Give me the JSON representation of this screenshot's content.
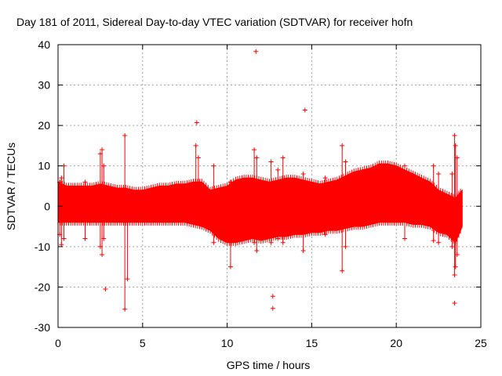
{
  "chart_data": {
    "type": "scatter",
    "title": "Day 181 of 2011, Sidereal Day-to-day VTEC variation (SDTVAR) for receiver hofn",
    "xlabel": "GPS time / hours",
    "ylabel": "SDTVAR / TECUs",
    "xlim": [
      0,
      25
    ],
    "ylim": [
      -30,
      40
    ],
    "xticks": [
      0,
      5,
      10,
      15,
      20,
      25
    ],
    "yticks": [
      -30,
      -20,
      -10,
      0,
      10,
      20,
      30,
      40
    ],
    "grid": true,
    "series_color": "#ff0000",
    "band": {
      "x": [
        0,
        0.5,
        1,
        1.5,
        2,
        2.5,
        3,
        3.5,
        4,
        4.5,
        5,
        5.5,
        6,
        6.5,
        7,
        7.5,
        8,
        8.5,
        9,
        9.5,
        10,
        10.5,
        11,
        11.5,
        12,
        12.5,
        13,
        13.5,
        14,
        14.5,
        15,
        15.5,
        16,
        16.5,
        17,
        17.5,
        18,
        18.5,
        19,
        19.5,
        20,
        20.5,
        21,
        21.5,
        22,
        22.5,
        23,
        23.5,
        23.9
      ],
      "upper": [
        6,
        5,
        5,
        5,
        5,
        5.5,
        5,
        4.5,
        4.5,
        4,
        4,
        4.5,
        5,
        5,
        5.5,
        5.5,
        6,
        6,
        4,
        4.5,
        5,
        6.5,
        7,
        7,
        6.5,
        6,
        6.5,
        7,
        7,
        6.5,
        6,
        5.5,
        6,
        6.5,
        7.5,
        8.5,
        9,
        9.5,
        10.5,
        10.5,
        10,
        9,
        8,
        7,
        6,
        4,
        3,
        2,
        4
      ],
      "lower": [
        -4,
        -4,
        -4,
        -4,
        -4,
        -4,
        -4,
        -4,
        -4,
        -4,
        -4,
        -4,
        -4,
        -4,
        -4,
        -4,
        -4.5,
        -5,
        -6,
        -8,
        -9,
        -9,
        -8.5,
        -8,
        -8.5,
        -8,
        -7.5,
        -7.5,
        -7,
        -7,
        -6.5,
        -6.5,
        -6,
        -6,
        -5.5,
        -5,
        -5,
        -4.5,
        -4,
        -4,
        -4,
        -4,
        -4.5,
        -4.5,
        -5,
        -6.5,
        -7,
        -9,
        -5
      ]
    },
    "spikes": [
      {
        "x": 0.1,
        "y0": -7,
        "y1": 6
      },
      {
        "x": 0.2,
        "y0": -9.5,
        "y1": 7
      },
      {
        "x": 0.35,
        "y0": -8,
        "y1": 10
      },
      {
        "x": 1.6,
        "y0": -8,
        "y1": 6
      },
      {
        "x": 2.5,
        "y0": -10,
        "y1": 13
      },
      {
        "x": 2.6,
        "y0": -12,
        "y1": 14
      },
      {
        "x": 2.7,
        "y0": -8,
        "y1": 10
      },
      {
        "x": 3.95,
        "y0": -25.5,
        "y1": 17.5
      },
      {
        "x": 4.1,
        "y0": -18,
        "y1": 0
      },
      {
        "x": 8.15,
        "y0": -4,
        "y1": 15
      },
      {
        "x": 8.3,
        "y0": -4,
        "y1": 12
      },
      {
        "x": 9.2,
        "y0": -9,
        "y1": 10
      },
      {
        "x": 10.2,
        "y0": -15,
        "y1": 6
      },
      {
        "x": 11.6,
        "y0": -9,
        "y1": 14
      },
      {
        "x": 11.75,
        "y0": -11,
        "y1": 12
      },
      {
        "x": 12.6,
        "y0": -9,
        "y1": 11
      },
      {
        "x": 13.0,
        "y0": -8,
        "y1": 9
      },
      {
        "x": 13.3,
        "y0": -9,
        "y1": 12
      },
      {
        "x": 14.5,
        "y0": -11,
        "y1": 8
      },
      {
        "x": 15.8,
        "y0": -7,
        "y1": 7
      },
      {
        "x": 16.8,
        "y0": -16,
        "y1": 15
      },
      {
        "x": 17.0,
        "y0": -10,
        "y1": 11
      },
      {
        "x": 20.5,
        "y0": -8,
        "y1": 10
      },
      {
        "x": 22.2,
        "y0": -8.5,
        "y1": 10
      },
      {
        "x": 22.5,
        "y0": -9,
        "y1": 8
      },
      {
        "x": 23.3,
        "y0": -10,
        "y1": 8
      },
      {
        "x": 23.45,
        "y0": -17,
        "y1": 17.5
      },
      {
        "x": 23.5,
        "y0": -15,
        "y1": 15
      },
      {
        "x": 23.6,
        "y0": -12,
        "y1": 12
      }
    ],
    "outliers": [
      {
        "x": 2.8,
        "y": -20.5
      },
      {
        "x": 8.2,
        "y": 20.7
      },
      {
        "x": 11.7,
        "y": 38.3
      },
      {
        "x": 12.7,
        "y": -22.3
      },
      {
        "x": 12.7,
        "y": -25.3
      },
      {
        "x": 14.6,
        "y": 23.8
      },
      {
        "x": 23.45,
        "y": -24
      }
    ]
  }
}
